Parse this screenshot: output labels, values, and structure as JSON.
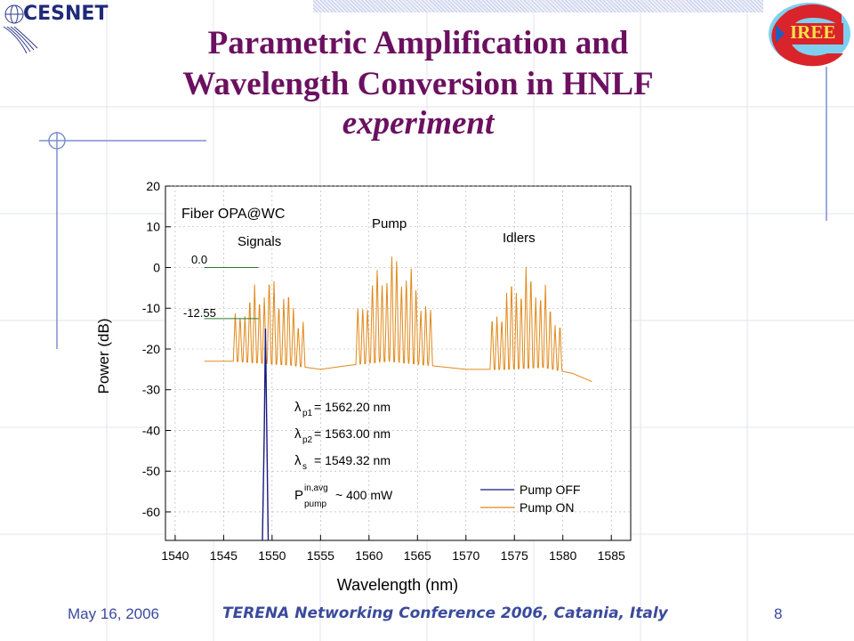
{
  "slide": {
    "title_line1": "Parametric Amplification and",
    "title_line2": "Wavelength Conversion in HNLF",
    "title_line3": "experiment",
    "logo_left_text": "CESNET",
    "logo_right_text": "IREE"
  },
  "footer": {
    "date": "May 16, 2006",
    "conference": "TERENA Networking Conference 2006, Catania, Italy",
    "page_number": "8"
  },
  "chart_data": {
    "type": "line",
    "title": "Fiber OPA@WC",
    "xlabel": "Wavelength (nm)",
    "ylabel": "Power (dB)",
    "xlim": [
      1539,
      1587
    ],
    "ylim": [
      -67,
      20
    ],
    "x_ticks": [
      1540,
      1545,
      1550,
      1555,
      1560,
      1565,
      1570,
      1575,
      1580,
      1585
    ],
    "y_ticks": [
      20,
      10,
      0,
      -10,
      -20,
      -30,
      -40,
      -50,
      -60
    ],
    "grid": true,
    "legend_position": "bottom-right",
    "annotations": {
      "signals": "Signals",
      "pump": "Pump",
      "idlers": "Idlers",
      "level_high": "0.0",
      "level_low": "-12.55",
      "level_high_value": 0.0,
      "level_low_value": -12.55,
      "lambda_p1": "= 1562.20 nm",
      "lambda_p2": "= 1563.00 nm",
      "lambda_s": "= 1549.32 nm",
      "power": "~ 400 mW"
    },
    "series": [
      {
        "name": "Pump OFF",
        "color": "#1a1a80",
        "x": [
          1549.0,
          1549.2,
          1549.32,
          1549.45,
          1549.6
        ],
        "y": [
          -67,
          -40,
          -15,
          -40,
          -67
        ]
      },
      {
        "name": "Pump ON",
        "color": "#e0891a",
        "base_x": [
          1543,
          1546,
          1549,
          1552,
          1555,
          1558,
          1562,
          1566,
          1570,
          1574,
          1578,
          1581,
          1583
        ],
        "base_y": [
          -23,
          -23,
          -23.5,
          -24,
          -25,
          -24,
          -23,
          -24,
          -25,
          -25,
          -24.5,
          -26,
          -28
        ],
        "peaks": [
          {
            "center": 1549.7,
            "spacing": 0.5,
            "count": 15,
            "top": -1.5,
            "envelope": 4.5
          },
          {
            "center": 1562.6,
            "spacing": 0.5,
            "count": 16,
            "top": 5,
            "envelope": 4.5
          },
          {
            "center": 1576.2,
            "spacing": 0.5,
            "count": 15,
            "top": 1,
            "envelope": 4.2
          }
        ]
      }
    ]
  }
}
